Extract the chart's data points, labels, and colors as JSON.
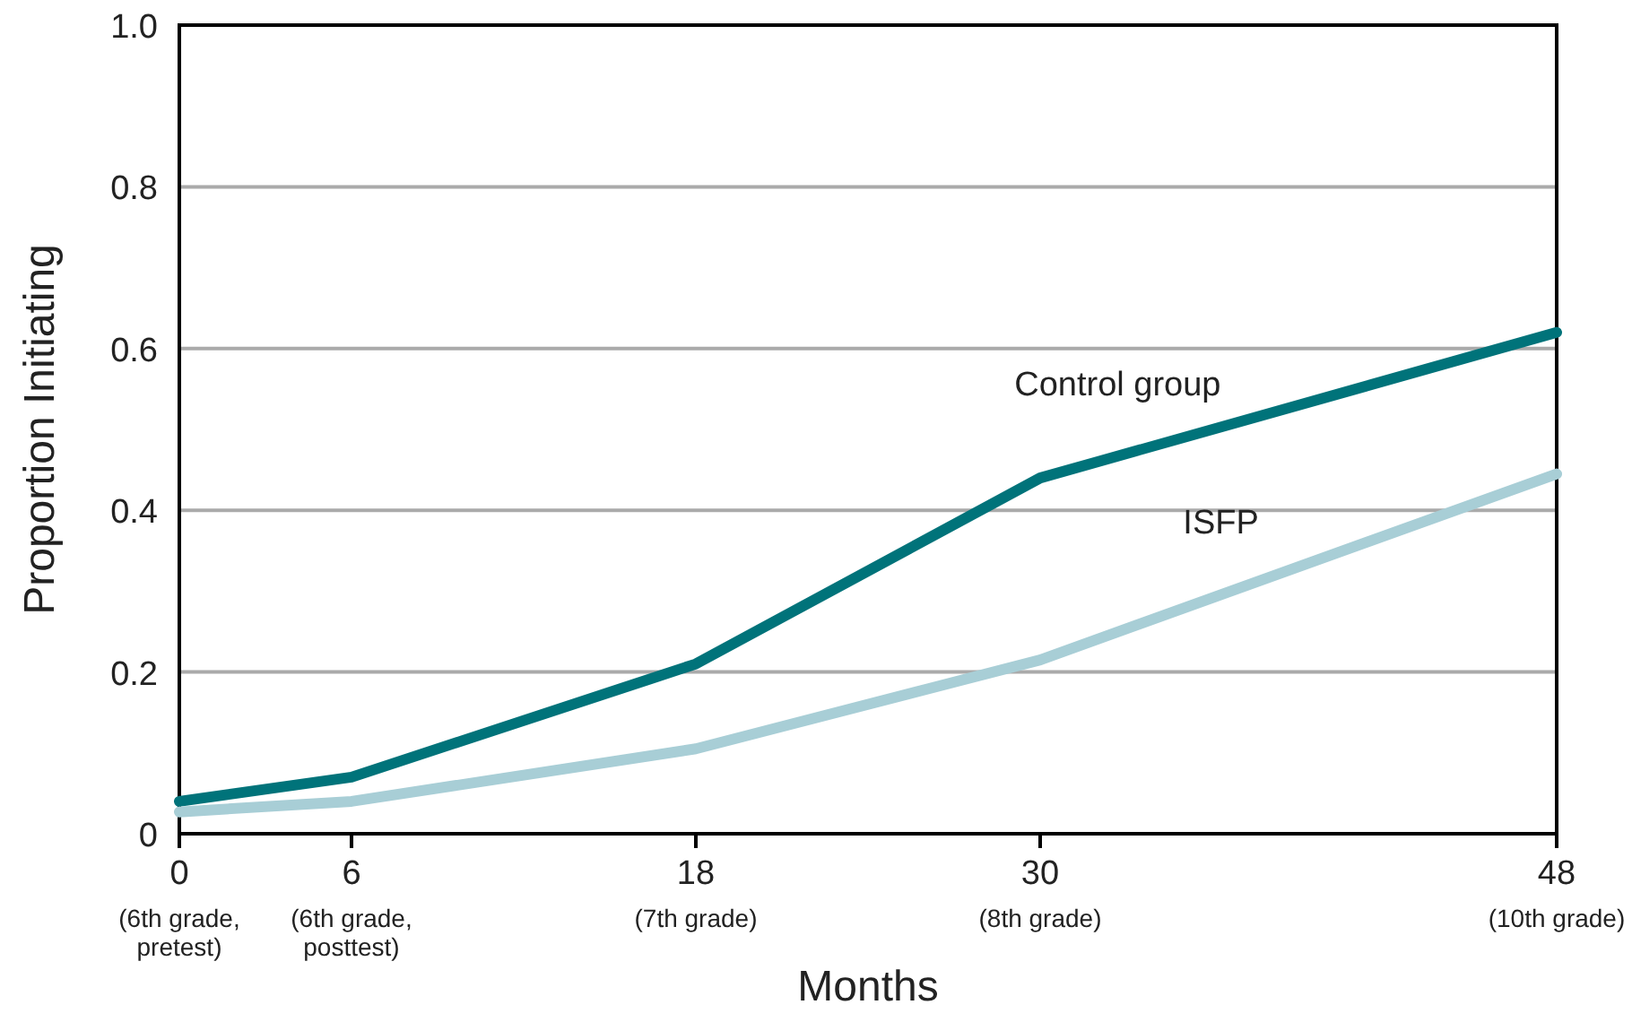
{
  "chart_data": {
    "type": "line",
    "xlabel": "Months",
    "ylabel": "Proportion Initiating",
    "x": [
      0,
      6,
      18,
      30,
      48
    ],
    "xlim": [
      0,
      48
    ],
    "xticks": [
      0,
      6,
      18,
      30,
      48
    ],
    "annotations": [
      "(6th grade,\npretest)",
      "(6th grade,\nposttest)",
      "(7th grade)",
      "(8th grade)",
      "(10th grade)"
    ],
    "ylim": [
      0,
      1
    ],
    "yticks": [
      0,
      0.2,
      0.4,
      0.6,
      0.8,
      {
        "value": 1,
        "label": "1.0"
      }
    ],
    "grid": "y",
    "marker": "none",
    "line_style": "solid",
    "series": [
      {
        "name": "Control group",
        "color": "#00737a",
        "values": [
          0.04,
          0.07,
          0.21,
          0.44,
          0.62
        ]
      },
      {
        "name": "ISFP",
        "color": "#a8ced6",
        "values": [
          0.027,
          0.04,
          0.105,
          0.215,
          0.445
        ]
      }
    ]
  }
}
